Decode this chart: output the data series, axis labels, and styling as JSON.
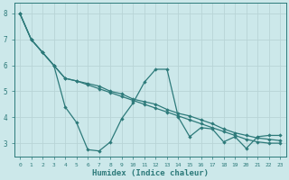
{
  "title": "",
  "xlabel": "Humidex (Indice chaleur)",
  "bg_color": "#cce8ea",
  "grid_color": "#b8d4d6",
  "line_color": "#2d7a7a",
  "xlim": [
    -0.5,
    23.5
  ],
  "ylim": [
    2.5,
    8.4
  ],
  "xticks": [
    0,
    1,
    2,
    3,
    4,
    5,
    6,
    7,
    8,
    9,
    10,
    11,
    12,
    13,
    14,
    15,
    16,
    17,
    18,
    19,
    20,
    21,
    22,
    23
  ],
  "yticks": [
    3,
    4,
    5,
    6,
    7,
    8
  ],
  "series_zigzag": {
    "x": [
      0,
      1,
      2,
      3,
      4,
      5,
      6,
      7,
      8,
      9,
      10,
      11,
      12,
      13,
      14,
      15,
      16,
      17,
      18,
      19,
      20,
      21,
      22,
      23
    ],
    "y": [
      8.0,
      7.0,
      6.5,
      6.0,
      4.4,
      3.8,
      2.75,
      2.7,
      3.05,
      3.95,
      4.55,
      5.35,
      5.85,
      5.85,
      4.0,
      3.25,
      3.6,
      3.55,
      3.05,
      3.25,
      2.8,
      3.25,
      3.3,
      3.3
    ]
  },
  "series_linear1": {
    "x": [
      0,
      1,
      2,
      3,
      4,
      5,
      6,
      7,
      8,
      9,
      10,
      11,
      12,
      13,
      14,
      15,
      16,
      17,
      18,
      19,
      20,
      21,
      22,
      23
    ],
    "y": [
      8.0,
      7.0,
      6.5,
      6.0,
      5.5,
      5.4,
      5.3,
      5.2,
      5.0,
      4.9,
      4.7,
      4.6,
      4.5,
      4.3,
      4.15,
      4.05,
      3.9,
      3.75,
      3.55,
      3.4,
      3.3,
      3.2,
      3.15,
      3.1
    ]
  },
  "series_linear2": {
    "x": [
      0,
      1,
      2,
      3,
      4,
      5,
      6,
      7,
      8,
      9,
      10,
      11,
      12,
      13,
      14,
      15,
      16,
      17,
      18,
      19,
      20,
      21,
      22,
      23
    ],
    "y": [
      8.0,
      7.0,
      6.5,
      6.0,
      5.5,
      5.4,
      5.25,
      5.1,
      4.95,
      4.8,
      4.65,
      4.5,
      4.35,
      4.2,
      4.05,
      3.9,
      3.75,
      3.6,
      3.45,
      3.3,
      3.15,
      3.05,
      3.0,
      3.0
    ]
  },
  "marker": "D",
  "markersize": 2.2,
  "linewidth": 0.9
}
